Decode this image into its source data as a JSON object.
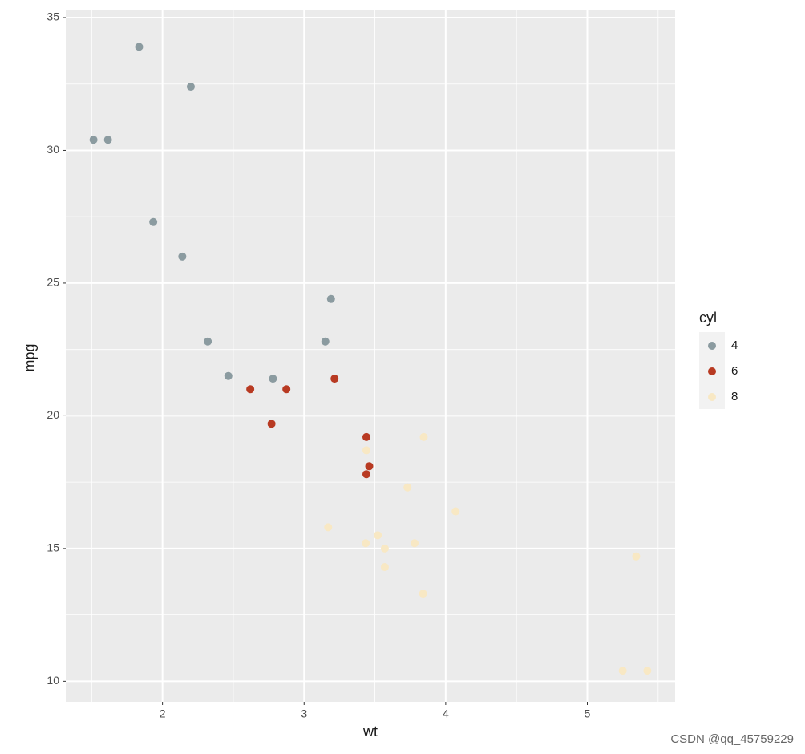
{
  "chart_data": {
    "type": "scatter",
    "x_label": "wt",
    "y_label": "mpg",
    "legend_title": "cyl",
    "legend_position": "right",
    "xlim": [
      1.317,
      5.62
    ],
    "ylim": [
      9.225,
      35.075
    ],
    "xticks": [
      2,
      3,
      4,
      5
    ],
    "yticks": [
      10,
      15,
      20,
      25,
      30,
      35
    ],
    "x_minor_grid": [
      1.5,
      2.5,
      3.5,
      4.5,
      5.5
    ],
    "y_minor_grid": [
      12.5,
      17.5,
      22.5,
      27.5,
      32.5
    ],
    "grid": true,
    "series": [
      {
        "name": "4",
        "color": "#8b9ba0",
        "x": [
          2.32,
          3.19,
          3.15,
          2.2,
          1.615,
          1.835,
          2.465,
          1.935,
          2.14,
          1.513,
          2.78
        ],
        "values": [
          22.8,
          24.4,
          22.8,
          32.4,
          30.4,
          33.9,
          21.5,
          27.3,
          26,
          30.4,
          21.4
        ]
      },
      {
        "name": "6",
        "color": "#b83a22",
        "x": [
          2.62,
          2.875,
          3.215,
          3.46,
          3.44,
          3.44,
          2.77
        ],
        "values": [
          21,
          21,
          21.4,
          18.1,
          19.2,
          17.8,
          19.7
        ]
      },
      {
        "name": "8",
        "color": "#f8e8c4",
        "x": [
          3.44,
          3.57,
          4.07,
          3.73,
          3.78,
          5.25,
          5.424,
          5.345,
          3.52,
          3.435,
          3.84,
          3.845,
          3.17,
          3.57
        ],
        "values": [
          18.7,
          14.3,
          16.4,
          17.3,
          15.2,
          10.4,
          10.4,
          14.7,
          15.5,
          15.2,
          13.3,
          19.2,
          15.8,
          15
        ]
      }
    ]
  },
  "watermark": "CSDN @qq_45759229"
}
